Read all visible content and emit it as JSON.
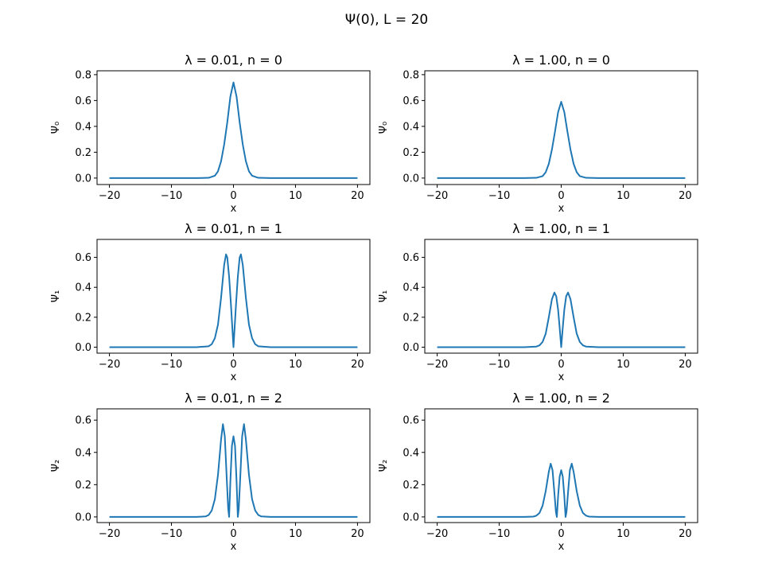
{
  "figure": {
    "suptitle": "Ψ(0), L = 20"
  },
  "chart_data": [
    {
      "type": "line",
      "title": "λ = 0.01, n = 0",
      "xlabel": "x",
      "ylabel": "Ψ₀",
      "xlim": [
        -22,
        22
      ],
      "ylim": [
        -0.05,
        0.83
      ],
      "xticks": [
        -20,
        -10,
        0,
        10,
        20
      ],
      "yticks": [
        0.0,
        0.2,
        0.4,
        0.6,
        0.8
      ],
      "xticklabels": [
        "−20",
        "−10",
        "0",
        "10",
        "20"
      ],
      "yticklabels": [
        "0.0",
        "0.2",
        "0.4",
        "0.6",
        "0.8"
      ],
      "series": [
        {
          "color": "#1f77b4",
          "x": [
            -20,
            -6,
            -4,
            -3,
            -2.5,
            -2,
            -1.5,
            -1,
            -0.5,
            0,
            0.5,
            1,
            1.5,
            2,
            2.5,
            3,
            4,
            6,
            20
          ],
          "y": [
            0,
            0,
            0.002,
            0.018,
            0.052,
            0.13,
            0.26,
            0.43,
            0.63,
            0.74,
            0.63,
            0.43,
            0.26,
            0.13,
            0.052,
            0.018,
            0.002,
            0,
            0
          ]
        }
      ]
    },
    {
      "type": "line",
      "title": "λ = 1.00, n = 0",
      "xlabel": "x",
      "ylabel": "Ψ₀",
      "xlim": [
        -22,
        22
      ],
      "ylim": [
        -0.05,
        0.83
      ],
      "xticks": [
        -20,
        -10,
        0,
        10,
        20
      ],
      "yticks": [
        0.0,
        0.2,
        0.4,
        0.6,
        0.8
      ],
      "xticklabels": [
        "−20",
        "−10",
        "0",
        "10",
        "20"
      ],
      "yticklabels": [
        "0.0",
        "0.2",
        "0.4",
        "0.6",
        "0.8"
      ],
      "series": [
        {
          "color": "#1f77b4",
          "x": [
            -20,
            -6,
            -4,
            -3,
            -2.5,
            -2,
            -1.5,
            -1,
            -0.5,
            0,
            0.5,
            1,
            1.5,
            2,
            2.5,
            3,
            4,
            6,
            20
          ],
          "y": [
            0,
            0,
            0.002,
            0.015,
            0.045,
            0.11,
            0.22,
            0.36,
            0.51,
            0.59,
            0.51,
            0.36,
            0.22,
            0.11,
            0.045,
            0.015,
            0.002,
            0,
            0
          ]
        }
      ]
    },
    {
      "type": "line",
      "title": "λ = 0.01, n = 1",
      "xlabel": "x",
      "ylabel": "Ψ₁",
      "xlim": [
        -22,
        22
      ],
      "ylim": [
        -0.04,
        0.72
      ],
      "xticks": [
        -20,
        -10,
        0,
        10,
        20
      ],
      "yticks": [
        0.0,
        0.2,
        0.4,
        0.6
      ],
      "xticklabels": [
        "−20",
        "−10",
        "0",
        "10",
        "20"
      ],
      "yticklabels": [
        "0.0",
        "0.2",
        "0.4",
        "0.6"
      ],
      "series": [
        {
          "color": "#1f77b4",
          "x": [
            -20,
            -6,
            -4,
            -3.5,
            -3,
            -2.5,
            -2,
            -1.5,
            -1.2,
            -1,
            -0.7,
            -0.4,
            -0.2,
            0,
            0.2,
            0.4,
            0.7,
            1,
            1.2,
            1.5,
            2,
            2.5,
            3,
            3.5,
            4,
            6,
            20
          ],
          "y": [
            0,
            0,
            0.006,
            0.02,
            0.06,
            0.15,
            0.33,
            0.55,
            0.62,
            0.6,
            0.47,
            0.28,
            0.14,
            0,
            0.14,
            0.28,
            0.47,
            0.6,
            0.62,
            0.55,
            0.33,
            0.15,
            0.06,
            0.02,
            0.006,
            0,
            0
          ]
        }
      ]
    },
    {
      "type": "line",
      "title": "λ = 1.00, n = 1",
      "xlabel": "x",
      "ylabel": "Ψ₁",
      "xlim": [
        -22,
        22
      ],
      "ylim": [
        -0.04,
        0.72
      ],
      "xticks": [
        -20,
        -10,
        0,
        10,
        20
      ],
      "yticks": [
        0.0,
        0.2,
        0.4,
        0.6
      ],
      "xticklabels": [
        "−20",
        "−10",
        "0",
        "10",
        "20"
      ],
      "yticklabels": [
        "0.0",
        "0.2",
        "0.4",
        "0.6"
      ],
      "series": [
        {
          "color": "#1f77b4",
          "x": [
            -20,
            -6,
            -4,
            -3.5,
            -3,
            -2.5,
            -2,
            -1.5,
            -1.1,
            -0.8,
            -0.5,
            -0.25,
            0,
            0.25,
            0.5,
            0.8,
            1.1,
            1.5,
            2,
            2.5,
            3,
            3.5,
            4,
            6,
            20
          ],
          "y": [
            0,
            0,
            0.004,
            0.012,
            0.035,
            0.09,
            0.2,
            0.32,
            0.365,
            0.34,
            0.25,
            0.13,
            0,
            0.13,
            0.25,
            0.34,
            0.365,
            0.32,
            0.2,
            0.09,
            0.035,
            0.012,
            0.004,
            0,
            0
          ]
        }
      ]
    },
    {
      "type": "line",
      "title": "λ = 0.01, n = 2",
      "xlabel": "x",
      "ylabel": "Ψ₂",
      "xlim": [
        -22,
        22
      ],
      "ylim": [
        -0.035,
        0.67
      ],
      "xticks": [
        -20,
        -10,
        0,
        10,
        20
      ],
      "yticks": [
        0.0,
        0.2,
        0.4,
        0.6
      ],
      "xticklabels": [
        "−20",
        "−10",
        "0",
        "10",
        "20"
      ],
      "yticklabels": [
        "0.0",
        "0.2",
        "0.4",
        "0.6"
      ],
      "series": [
        {
          "color": "#1f77b4",
          "x": [
            -20,
            -6,
            -4.5,
            -4,
            -3.5,
            -3,
            -2.5,
            -2,
            -1.7,
            -1.4,
            -1.1,
            -0.85,
            -0.7,
            -0.5,
            -0.25,
            0,
            0.25,
            0.5,
            0.7,
            0.85,
            1.1,
            1.4,
            1.7,
            2,
            2.5,
            3,
            3.5,
            4,
            4.5,
            6,
            20
          ],
          "y": [
            0,
            0,
            0.003,
            0.012,
            0.04,
            0.11,
            0.26,
            0.48,
            0.575,
            0.5,
            0.25,
            0.05,
            0,
            0.22,
            0.44,
            0.5,
            0.44,
            0.22,
            0,
            0.05,
            0.25,
            0.5,
            0.575,
            0.48,
            0.26,
            0.11,
            0.04,
            0.012,
            0.003,
            0,
            0
          ]
        }
      ]
    },
    {
      "type": "line",
      "title": "λ = 1.00, n = 2",
      "xlabel": "x",
      "ylabel": "Ψ₂",
      "xlim": [
        -22,
        22
      ],
      "ylim": [
        -0.035,
        0.67
      ],
      "xticks": [
        -20,
        -10,
        0,
        10,
        20
      ],
      "yticks": [
        0.0,
        0.2,
        0.4,
        0.6
      ],
      "xticklabels": [
        "−20",
        "−10",
        "0",
        "10",
        "20"
      ],
      "yticklabels": [
        "0.0",
        "0.2",
        "0.4",
        "0.6"
      ],
      "series": [
        {
          "color": "#1f77b4",
          "x": [
            -20,
            -6,
            -4.5,
            -4,
            -3.5,
            -3,
            -2.5,
            -2,
            -1.7,
            -1.4,
            -1.1,
            -0.85,
            -0.7,
            -0.5,
            -0.25,
            0,
            0.25,
            0.5,
            0.7,
            0.85,
            1.1,
            1.4,
            1.7,
            2,
            2.5,
            3,
            3.5,
            4,
            4.5,
            6,
            20
          ],
          "y": [
            0,
            0,
            0.002,
            0.008,
            0.025,
            0.07,
            0.16,
            0.28,
            0.33,
            0.29,
            0.15,
            0.03,
            0,
            0.13,
            0.25,
            0.29,
            0.25,
            0.13,
            0,
            0.03,
            0.15,
            0.29,
            0.33,
            0.28,
            0.16,
            0.07,
            0.025,
            0.008,
            0.002,
            0,
            0
          ]
        }
      ]
    }
  ]
}
